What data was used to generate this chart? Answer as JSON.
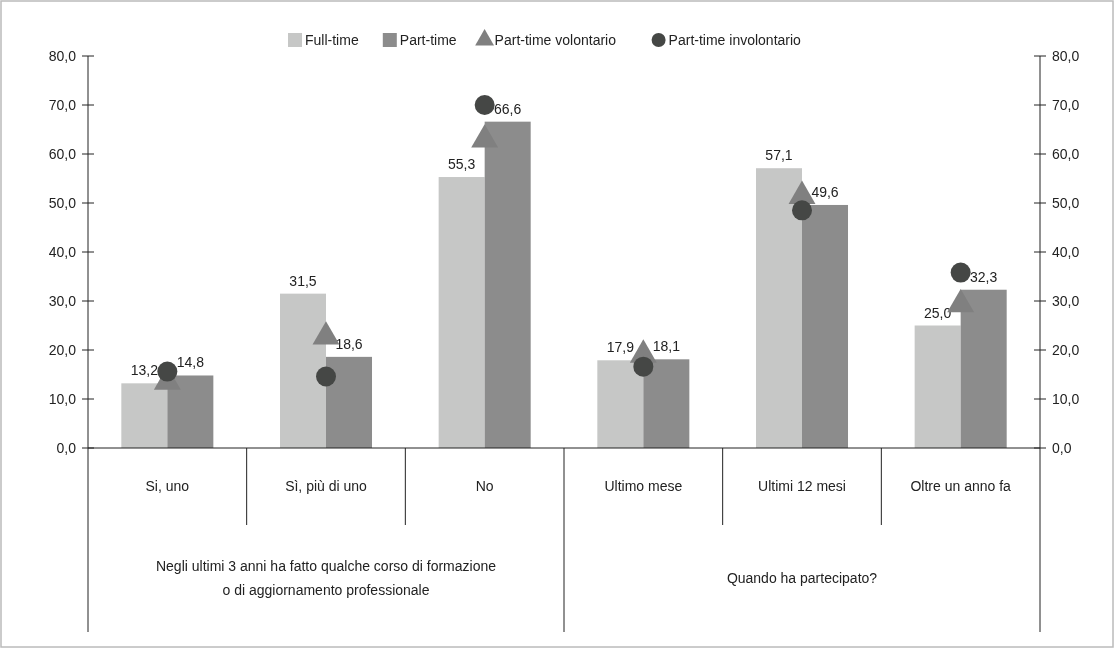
{
  "chart_data": {
    "type": "bar",
    "categories": [
      "Si, uno",
      "Sì, più di uno",
      "No",
      "Ultimo mese",
      "Ultimi 12 mesi",
      "Oltre un anno fa"
    ],
    "series": [
      {
        "name": "Full-time",
        "color": "#c6c7c6",
        "values": [
          13.2,
          31.5,
          55.3,
          17.9,
          57.1,
          25.0
        ],
        "value_labels": [
          "13,2",
          "31,5",
          "55,3",
          "17,9",
          "57,1",
          "25,0"
        ]
      },
      {
        "name": "Part-time",
        "color": "#8c8c8c",
        "values": [
          14.8,
          18.6,
          66.6,
          18.1,
          49.6,
          32.3
        ],
        "value_labels": [
          "14,8",
          "18,6",
          "66,6",
          "18,1",
          "49,6",
          "32,3"
        ]
      },
      {
        "name": "Part-time volontario",
        "type": "scatter",
        "marker": "triangle",
        "color": "#808080",
        "x": [
          "Si, uno",
          "Sì, più di uno",
          "No",
          "Ultimo mese",
          "Ultimi 12 mesi",
          "Oltre un anno fa"
        ],
        "values": [
          13.5,
          22.7,
          62.9,
          19.0,
          51.4,
          29.3
        ]
      },
      {
        "name": "Part-time involontario",
        "type": "scatter",
        "marker": "circle",
        "color": "#454745",
        "x": [
          "Si, uno",
          "Sì, più di uno",
          "No",
          "Ultimo mese",
          "Ultimi 12 mesi",
          "Oltre un anno fa"
        ],
        "values": [
          15.6,
          14.6,
          70.0,
          16.6,
          48.5,
          35.8
        ]
      }
    ],
    "ylim": [
      0,
      80
    ],
    "yticks": [
      {
        "value": 0,
        "label": "0,0"
      },
      {
        "value": 10,
        "label": "10,0"
      },
      {
        "value": 20,
        "label": "20,0"
      },
      {
        "value": 30,
        "label": "30,0"
      },
      {
        "value": 40,
        "label": "40,0"
      },
      {
        "value": 50,
        "label": "50,0"
      },
      {
        "value": 60,
        "label": "60,0"
      },
      {
        "value": 70,
        "label": "70,0"
      },
      {
        "value": 80,
        "label": "80,0"
      }
    ],
    "y2lim": [
      0,
      80
    ],
    "y2ticks": [
      {
        "value": 0,
        "label": "0,0"
      },
      {
        "value": 10,
        "label": "10,0"
      },
      {
        "value": 20,
        "label": "20,0"
      },
      {
        "value": 30,
        "label": "30,0"
      },
      {
        "value": 40,
        "label": "40,0"
      },
      {
        "value": 50,
        "label": "50,0"
      },
      {
        "value": 60,
        "label": "60,0"
      },
      {
        "value": 70,
        "label": "70,0"
      },
      {
        "value": 80,
        "label": "80,0"
      }
    ],
    "annotations": [
      "Negli ultimi 3 anni ha fatto qualche corso di formazione\no di aggiornamento professionale",
      "Quando ha partecipato?"
    ],
    "legend": "top",
    "grid": false
  }
}
